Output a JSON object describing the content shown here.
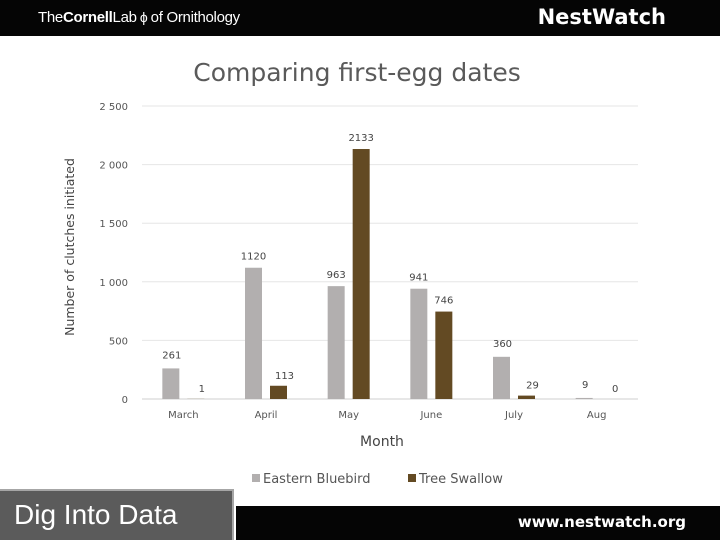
{
  "header": {
    "logo_the": "The",
    "logo_cornell": "Cornell",
    "logo_lab": "Lab",
    "logo_mark": "ϕ",
    "logo_of": "of",
    "logo_orn": " Ornithology",
    "brand": "NestWatch"
  },
  "footer": {
    "url": "www.nestwatch.org",
    "dig": "Dig Into Data"
  },
  "colors": {
    "eastern_bluebird": "#b2afaf",
    "tree_swallow": "#634a23",
    "header_bg": "#050505"
  },
  "chart_data": {
    "type": "bar",
    "title": "Comparing first-egg dates",
    "xlabel": "Month",
    "ylabel": "Number of clutches initiated",
    "categories": [
      "March",
      "April",
      "May",
      "June",
      "July",
      "Aug"
    ],
    "ylim": [
      0,
      2500
    ],
    "yticks": [
      0,
      500,
      1000,
      1500,
      2000,
      2500
    ],
    "ytick_labels": [
      "0",
      "500",
      "1 000",
      "1 500",
      "2 000",
      "2 500"
    ],
    "grid": true,
    "legend_position": "bottom",
    "series": [
      {
        "name": "Eastern Bluebird",
        "color": "#b2afaf",
        "values": [
          261,
          1120,
          963,
          941,
          360,
          9
        ]
      },
      {
        "name": "Tree Swallow",
        "color": "#634a23",
        "values": [
          1,
          113,
          2133,
          746,
          29,
          0
        ]
      }
    ]
  }
}
